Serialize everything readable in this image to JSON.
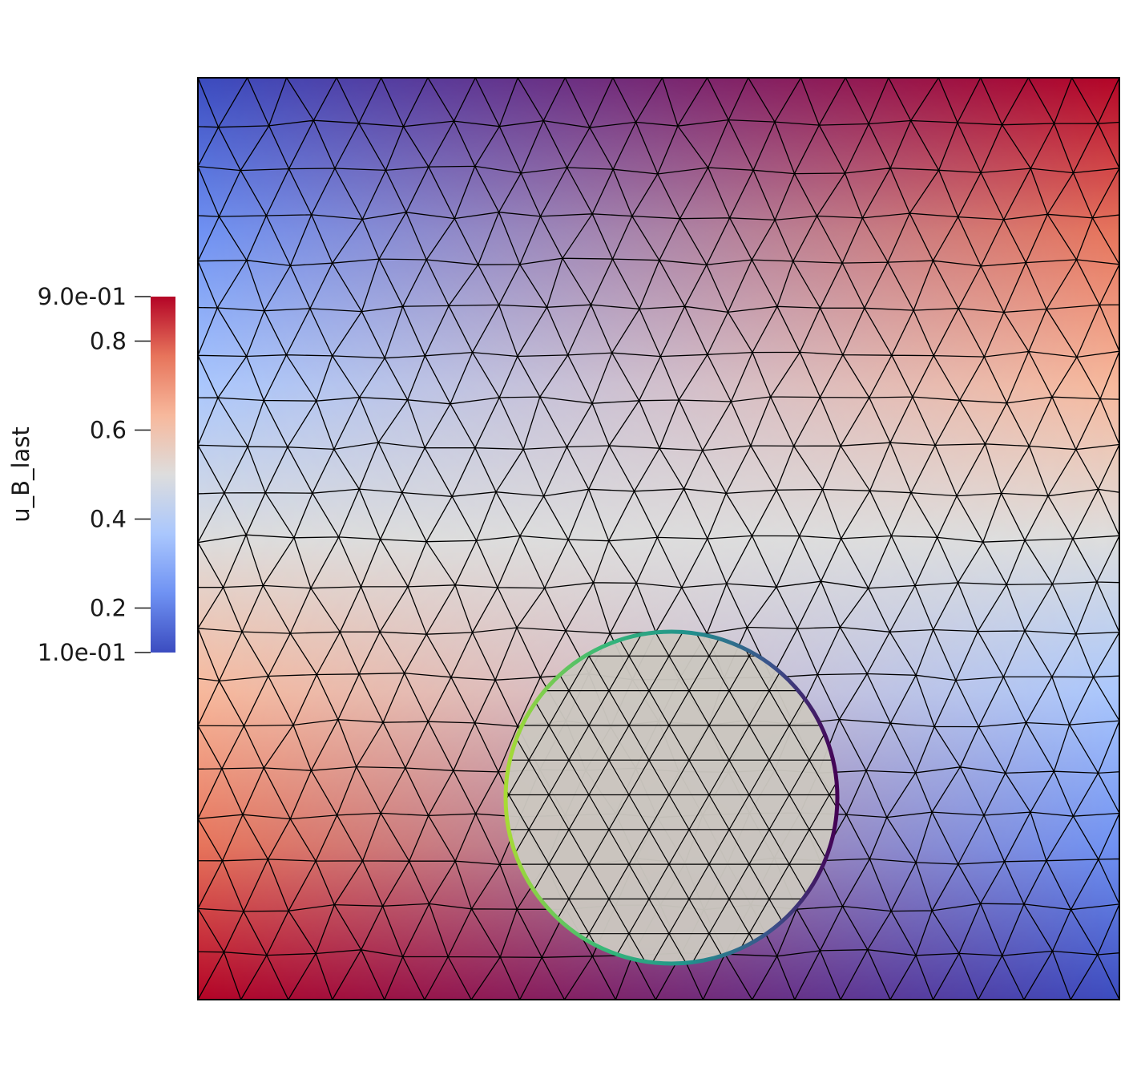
{
  "colorbar": {
    "title": "u_B_last",
    "max_label": "9.0e-01",
    "min_label": "1.0e-01",
    "range": [
      0.1,
      0.9
    ],
    "ticks": [
      {
        "value": 0.8,
        "label": "0.8"
      },
      {
        "value": 0.6,
        "label": "0.6"
      },
      {
        "value": 0.4,
        "label": "0.4"
      },
      {
        "value": 0.2,
        "label": "0.2"
      }
    ],
    "colormap": [
      "#3b4cc0",
      "#6f92f3",
      "#aac7fd",
      "#dddddd",
      "#f7b89c",
      "#e7745b",
      "#b40426"
    ]
  },
  "field": {
    "corner_values": {
      "top_left": 0.1,
      "top_right": 0.9,
      "bottom_left": 0.9,
      "bottom_right": 0.1
    },
    "circle_fill": "#cbc7c0",
    "circle_edge_colors": [
      "#a8db34",
      "#35b779",
      "#21918c",
      "#3b528b",
      "#440154"
    ]
  }
}
